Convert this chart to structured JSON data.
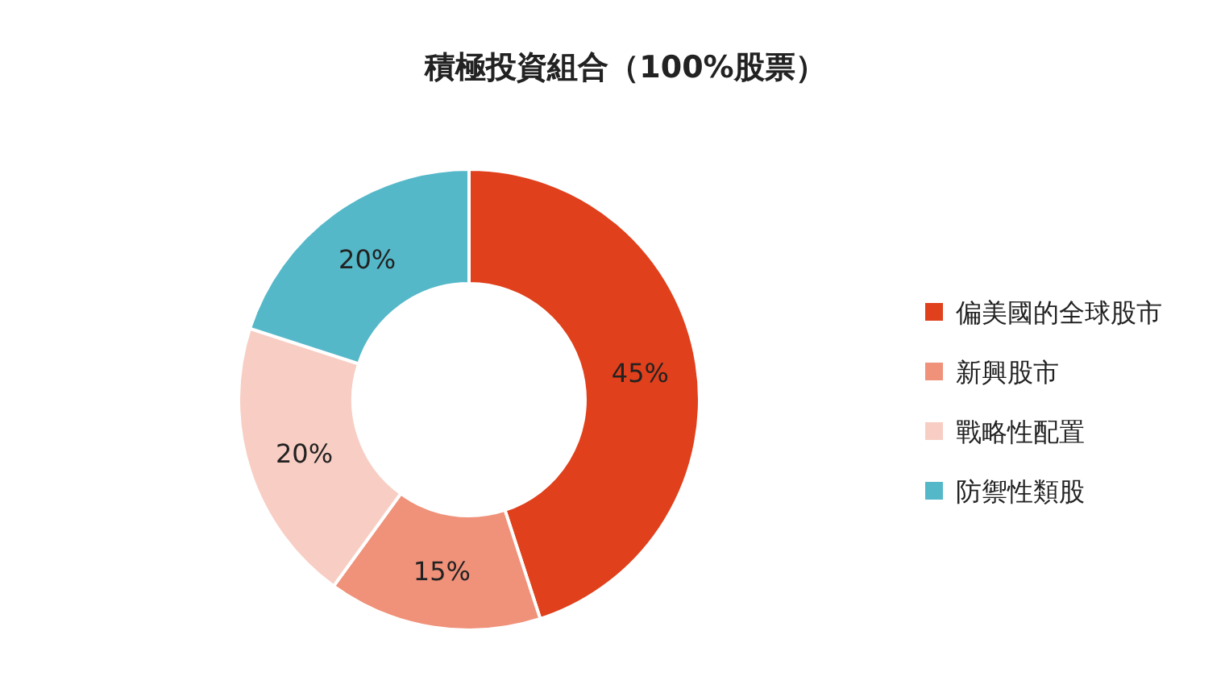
{
  "chart_data": {
    "type": "donut",
    "title": "積極投資組合（100%股票）",
    "categories": [
      "偏美國的全球股市",
      "新興股市",
      "戰略性配置",
      "防禦性類股"
    ],
    "values": [
      45,
      15,
      20,
      20
    ],
    "value_labels": [
      "45%",
      "15%",
      "20%",
      "20%"
    ],
    "colors": [
      "#e0401c",
      "#f0917a",
      "#f8cec4",
      "#55b8c9"
    ],
    "legend": "right"
  }
}
